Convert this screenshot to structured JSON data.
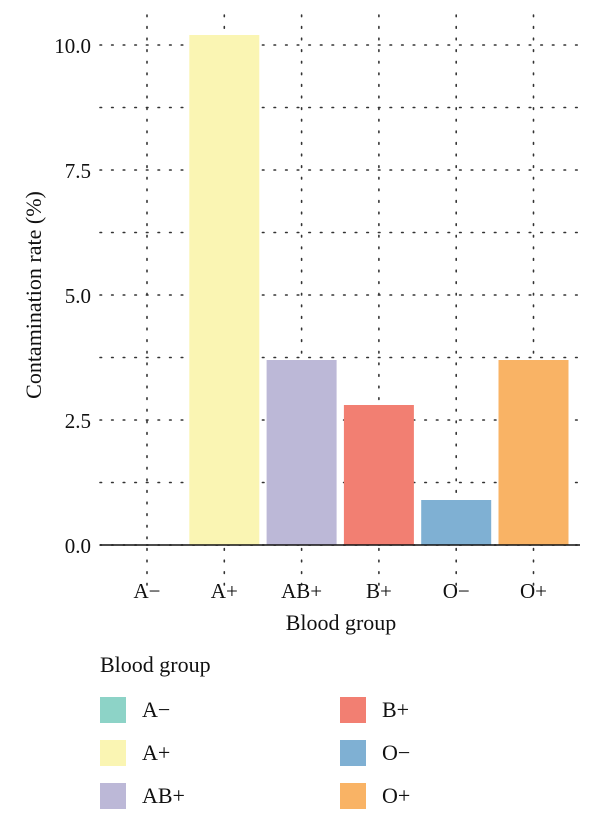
{
  "chart_data": {
    "type": "bar",
    "categories": [
      "A−",
      "A+",
      "AB+",
      "B+",
      "O−",
      "O+"
    ],
    "values": [
      0.0,
      10.2,
      3.7,
      2.8,
      0.9,
      3.7
    ],
    "colors": [
      "#8DD3C7",
      "#FAF5B3",
      "#BCB8D7",
      "#F27F72",
      "#7FB0D3",
      "#F9B365"
    ],
    "xlabel": "Blood group",
    "ylabel": "Contamination rate (%)",
    "ylim": [
      0,
      10.0
    ],
    "yticks": [
      "0.0",
      "2.5",
      "5.0",
      "7.5",
      "10.0"
    ],
    "grid": "dotted",
    "legend_position": "bottom"
  },
  "legend": {
    "title": "Blood group",
    "items": [
      {
        "label": "A−",
        "color": "#8DD3C7"
      },
      {
        "label": "A+",
        "color": "#FAF5B3"
      },
      {
        "label": "AB+",
        "color": "#BCB8D7"
      },
      {
        "label": "B+",
        "color": "#F27F72"
      },
      {
        "label": "O−",
        "color": "#7FB0D3"
      },
      {
        "label": "O+",
        "color": "#F9B365"
      }
    ]
  }
}
